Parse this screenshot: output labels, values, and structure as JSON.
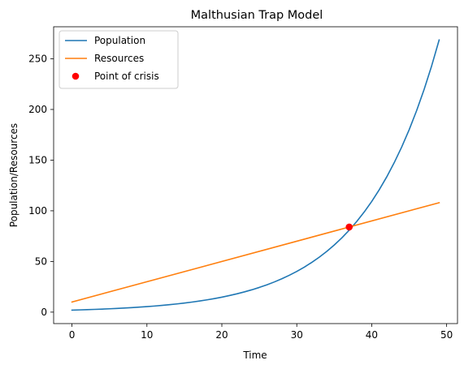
{
  "chart_data": {
    "type": "line",
    "title": "Malthusian Trap Model",
    "xlabel": "Time",
    "ylabel": "Population/Resources",
    "xlim": [
      -2.45,
      51.45
    ],
    "ylim": [
      -11.3,
      281.6
    ],
    "xticks": [
      0,
      10,
      20,
      30,
      40,
      50
    ],
    "yticks": [
      0,
      50,
      100,
      150,
      200,
      250
    ],
    "grid": false,
    "legend_position": "upper-left",
    "series": [
      {
        "name": "Population",
        "kind": "line",
        "color": "#1f77b4",
        "x": [
          0,
          1,
          2,
          3,
          4,
          5,
          6,
          7,
          8,
          9,
          10,
          11,
          12,
          13,
          14,
          15,
          16,
          17,
          18,
          19,
          20,
          21,
          22,
          23,
          24,
          25,
          26,
          27,
          28,
          29,
          30,
          31,
          32,
          33,
          34,
          35,
          36,
          37,
          38,
          39,
          40,
          41,
          42,
          43,
          44,
          45,
          46,
          47,
          48,
          49
        ],
        "y": [
          2.0,
          2.21,
          2.44,
          2.7,
          2.98,
          3.3,
          3.64,
          4.03,
          4.45,
          4.92,
          5.44,
          6.01,
          6.64,
          7.34,
          8.11,
          8.96,
          9.91,
          10.95,
          12.1,
          13.37,
          14.78,
          16.33,
          18.05,
          19.95,
          22.05,
          24.37,
          26.93,
          29.76,
          32.89,
          36.35,
          40.17,
          44.4,
          49.07,
          54.23,
          59.93,
          66.23,
          73.2,
          80.9,
          89.41,
          98.81,
          109.2,
          120.69,
          133.38,
          147.41,
          162.91,
          180.04,
          198.98,
          219.9,
          243.03,
          268.58
        ]
      },
      {
        "name": "Resources",
        "kind": "line",
        "color": "#ff7f0e",
        "x": [
          0,
          49
        ],
        "y": [
          10,
          108
        ]
      },
      {
        "name": "Point of crisis",
        "kind": "marker",
        "color": "#ff0000",
        "x": [
          37
        ],
        "y": [
          84
        ]
      }
    ]
  }
}
